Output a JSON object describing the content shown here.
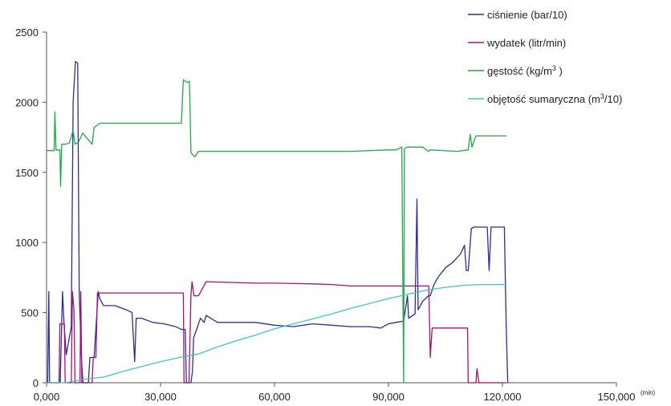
{
  "chart_data": {
    "type": "line",
    "title": "",
    "xlabel": "",
    "ylabel": "",
    "x_unit": "(min)",
    "xlim": [
      0,
      150000
    ],
    "ylim": [
      0,
      2500
    ],
    "x_ticks": [
      0,
      30000,
      60000,
      90000,
      120000,
      150000
    ],
    "x_tick_labels": [
      "0,000",
      "30,000",
      "60,000",
      "90,000",
      "120,000",
      "150,000"
    ],
    "y_ticks": [
      0,
      500,
      1000,
      1500,
      2000,
      2500
    ],
    "y_tick_labels": [
      "0",
      "500",
      "1000",
      "1500",
      "2000",
      "2500"
    ],
    "grid": false,
    "legend_position": "top-right",
    "series": [
      {
        "name": "ciśnienie (bar/10)",
        "legend_main": "ciśnienie (bar/10)",
        "legend_sup": "",
        "legend_tail": "",
        "color": "#2b2f8f",
        "points": [
          [
            0,
            0
          ],
          [
            300,
            0
          ],
          [
            600,
            650
          ],
          [
            800,
            0
          ],
          [
            3600,
            0
          ],
          [
            4200,
            650
          ],
          [
            4600,
            420
          ],
          [
            5200,
            200
          ],
          [
            6500,
            400
          ],
          [
            7000,
            2000
          ],
          [
            7600,
            2290
          ],
          [
            8200,
            2280
          ],
          [
            8600,
            640
          ],
          [
            9200,
            170
          ],
          [
            9600,
            0
          ],
          [
            11000,
            0
          ],
          [
            11400,
            180
          ],
          [
            12500,
            180
          ],
          [
            13600,
            650
          ],
          [
            14000,
            600
          ],
          [
            15000,
            550
          ],
          [
            18000,
            550
          ],
          [
            21000,
            520
          ],
          [
            22500,
            500
          ],
          [
            23200,
            150
          ],
          [
            23600,
            460
          ],
          [
            25000,
            460
          ],
          [
            28000,
            430
          ],
          [
            31000,
            420
          ],
          [
            34000,
            400
          ],
          [
            35500,
            380
          ],
          [
            36500,
            380
          ],
          [
            36800,
            0
          ],
          [
            38000,
            0
          ],
          [
            38400,
            80
          ],
          [
            38700,
            320
          ],
          [
            39500,
            380
          ],
          [
            40500,
            460
          ],
          [
            41500,
            430
          ],
          [
            42000,
            480
          ],
          [
            45000,
            430
          ],
          [
            50000,
            430
          ],
          [
            55000,
            430
          ],
          [
            60000,
            410
          ],
          [
            65000,
            400
          ],
          [
            70000,
            420
          ],
          [
            75000,
            410
          ],
          [
            80000,
            400
          ],
          [
            85000,
            400
          ],
          [
            88000,
            390
          ],
          [
            90000,
            420
          ],
          [
            92000,
            430
          ],
          [
            94000,
            440
          ],
          [
            95000,
            620
          ],
          [
            95300,
            460
          ],
          [
            97000,
            490
          ],
          [
            97500,
            1310
          ],
          [
            97800,
            520
          ],
          [
            99000,
            580
          ],
          [
            100500,
            620
          ],
          [
            101000,
            620
          ],
          [
            102000,
            700
          ],
          [
            103000,
            750
          ],
          [
            105000,
            820
          ],
          [
            107000,
            860
          ],
          [
            109000,
            920
          ],
          [
            110000,
            980
          ],
          [
            110500,
            800
          ],
          [
            111000,
            800
          ],
          [
            111800,
            1100
          ],
          [
            112500,
            1110
          ],
          [
            115000,
            1110
          ],
          [
            116000,
            1110
          ],
          [
            116500,
            800
          ],
          [
            117000,
            1110
          ],
          [
            118000,
            1110
          ],
          [
            120500,
            1110
          ],
          [
            121000,
            400
          ],
          [
            121400,
            0
          ]
        ]
      },
      {
        "name": "wydatek (litr/min)",
        "legend_main": "wydatek (litr/min)",
        "legend_sup": "",
        "legend_tail": "",
        "color": "#a0127a",
        "points": [
          [
            0,
            0
          ],
          [
            3300,
            0
          ],
          [
            3500,
            420
          ],
          [
            4700,
            420
          ],
          [
            4900,
            0
          ],
          [
            6500,
            0
          ],
          [
            6800,
            650
          ],
          [
            7200,
            520
          ],
          [
            7500,
            0
          ],
          [
            8800,
            0
          ],
          [
            9000,
            650
          ],
          [
            9300,
            0
          ],
          [
            12000,
            0
          ],
          [
            12300,
            180
          ],
          [
            13000,
            180
          ],
          [
            13400,
            640
          ],
          [
            35500,
            640
          ],
          [
            36000,
            640
          ],
          [
            36200,
            0
          ],
          [
            37500,
            0
          ],
          [
            38000,
            630
          ],
          [
            38300,
            720
          ],
          [
            38800,
            620
          ],
          [
            40000,
            620
          ],
          [
            42000,
            720
          ],
          [
            55000,
            710
          ],
          [
            60000,
            710
          ],
          [
            70000,
            705
          ],
          [
            75000,
            700
          ],
          [
            80000,
            690
          ],
          [
            85000,
            690
          ],
          [
            90000,
            690
          ],
          [
            95000,
            690
          ],
          [
            100000,
            690
          ],
          [
            100600,
            690
          ],
          [
            101000,
            180
          ],
          [
            101500,
            390
          ],
          [
            106000,
            390
          ],
          [
            110000,
            390
          ],
          [
            110800,
            390
          ],
          [
            111000,
            0
          ],
          [
            113000,
            0
          ],
          [
            113300,
            100
          ],
          [
            113800,
            0
          ],
          [
            121000,
            0
          ]
        ]
      },
      {
        "name": "gęstość (kg/m3)",
        "legend_main": "gęstość (kg/m",
        "legend_sup": "3",
        "legend_tail": " )",
        "color": "#1faa4a",
        "points": [
          [
            0,
            1655
          ],
          [
            2000,
            1655
          ],
          [
            2200,
            1930
          ],
          [
            2500,
            1660
          ],
          [
            3500,
            1660
          ],
          [
            3700,
            1400
          ],
          [
            4000,
            1700
          ],
          [
            5000,
            1700
          ],
          [
            6000,
            1710
          ],
          [
            7000,
            1800
          ],
          [
            7500,
            1700
          ],
          [
            8500,
            1720
          ],
          [
            9500,
            1780
          ],
          [
            12000,
            1700
          ],
          [
            12500,
            1820
          ],
          [
            14000,
            1850
          ],
          [
            35500,
            1850
          ],
          [
            36000,
            2160
          ],
          [
            37000,
            2140
          ],
          [
            37600,
            2150
          ],
          [
            38000,
            1640
          ],
          [
            39000,
            1610
          ],
          [
            40000,
            1650
          ],
          [
            45000,
            1650
          ],
          [
            60000,
            1650
          ],
          [
            80000,
            1650
          ],
          [
            90000,
            1660
          ],
          [
            92000,
            1660
          ],
          [
            93500,
            1680
          ],
          [
            94000,
            0
          ],
          [
            94200,
            1670
          ],
          [
            95000,
            1680
          ],
          [
            99000,
            1680
          ],
          [
            100500,
            1650
          ],
          [
            101000,
            1660
          ],
          [
            108000,
            1650
          ],
          [
            111000,
            1660
          ],
          [
            111500,
            1770
          ],
          [
            112000,
            1680
          ],
          [
            113000,
            1760
          ],
          [
            121000,
            1760
          ]
        ]
      },
      {
        "name": "objętość sumaryczna (m3/10)",
        "legend_main": "objętość sumaryczna (m",
        "legend_sup": "3",
        "legend_tail": "/10)",
        "color": "#3fc5c5",
        "points": [
          [
            0,
            0
          ],
          [
            5000,
            0
          ],
          [
            8000,
            15
          ],
          [
            10000,
            25
          ],
          [
            15000,
            40
          ],
          [
            20000,
            80
          ],
          [
            25000,
            115
          ],
          [
            30000,
            150
          ],
          [
            35000,
            180
          ],
          [
            37000,
            190
          ],
          [
            40000,
            205
          ],
          [
            45000,
            255
          ],
          [
            50000,
            300
          ],
          [
            55000,
            340
          ],
          [
            60000,
            385
          ],
          [
            65000,
            420
          ],
          [
            70000,
            455
          ],
          [
            75000,
            490
          ],
          [
            80000,
            530
          ],
          [
            85000,
            565
          ],
          [
            90000,
            600
          ],
          [
            95000,
            630
          ],
          [
            100000,
            660
          ],
          [
            105000,
            680
          ],
          [
            110000,
            695
          ],
          [
            115000,
            700
          ],
          [
            121000,
            700
          ]
        ]
      }
    ]
  }
}
